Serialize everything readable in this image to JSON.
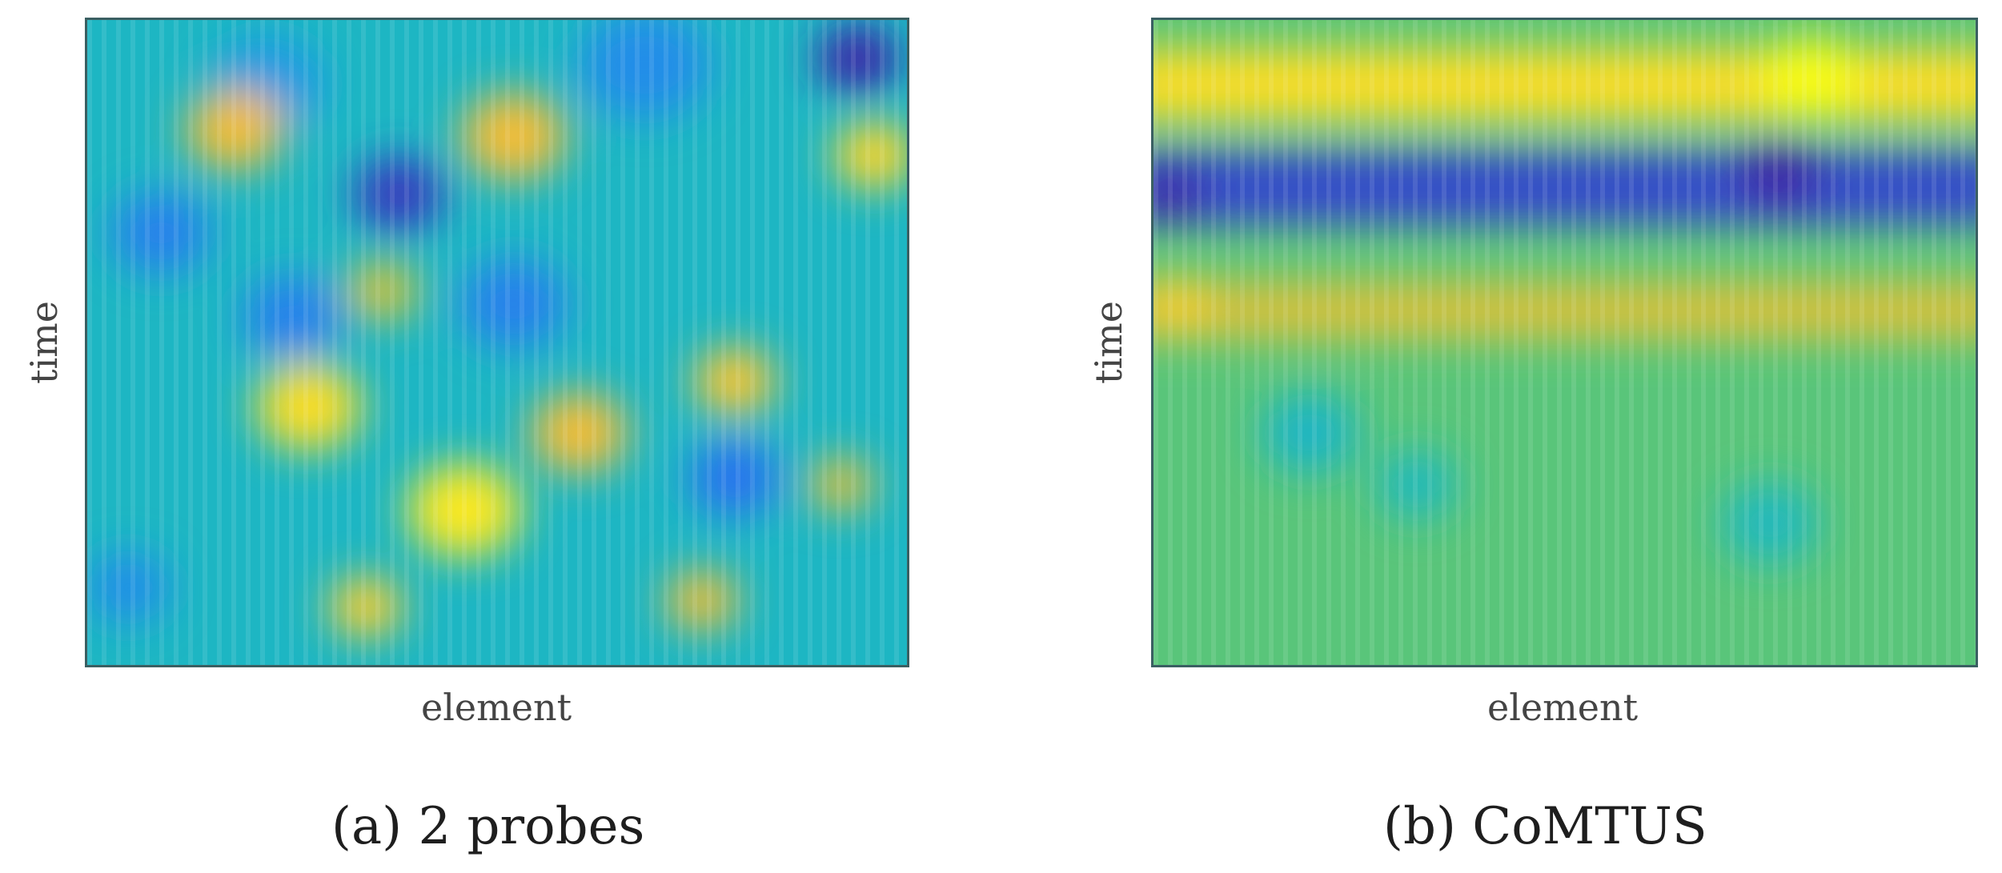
{
  "chart_data": [
    {
      "type": "heatmap",
      "caption": "(a) 2 probes",
      "xlabel": "element",
      "ylabel": "time",
      "colormap": [
        "#3e26a8",
        "#2e6ef0",
        "#12aedf",
        "#2ec39a",
        "#a5c840",
        "#f9bc38",
        "#f9fb15"
      ],
      "grid": false,
      "legend": "none",
      "blobs": [
        {
          "x": 0.94,
          "y": 0.06,
          "value": 0.0,
          "size": 0.05
        },
        {
          "x": 0.38,
          "y": 0.27,
          "value": 0.05,
          "size": 0.055
        },
        {
          "x": 0.79,
          "y": 0.71,
          "value": 0.18,
          "size": 0.055
        },
        {
          "x": 0.09,
          "y": 0.33,
          "value": 0.22,
          "size": 0.06
        },
        {
          "x": 0.25,
          "y": 0.46,
          "value": 0.22,
          "size": 0.06
        },
        {
          "x": 0.52,
          "y": 0.44,
          "value": 0.22,
          "size": 0.065
        },
        {
          "x": 0.68,
          "y": 0.07,
          "value": 0.25,
          "size": 0.08
        },
        {
          "x": 0.22,
          "y": 0.1,
          "value": 0.28,
          "size": 0.07
        },
        {
          "x": 0.05,
          "y": 0.88,
          "value": 0.25,
          "size": 0.05
        },
        {
          "x": 0.18,
          "y": 0.17,
          "value": 0.82,
          "size": 0.06
        },
        {
          "x": 0.52,
          "y": 0.18,
          "value": 0.82,
          "size": 0.065
        },
        {
          "x": 0.96,
          "y": 0.21,
          "value": 0.9,
          "size": 0.05
        },
        {
          "x": 0.27,
          "y": 0.6,
          "value": 0.92,
          "size": 0.065
        },
        {
          "x": 0.46,
          "y": 0.76,
          "value": 0.95,
          "size": 0.07
        },
        {
          "x": 0.6,
          "y": 0.64,
          "value": 0.82,
          "size": 0.06
        },
        {
          "x": 0.79,
          "y": 0.56,
          "value": 0.86,
          "size": 0.05
        },
        {
          "x": 0.36,
          "y": 0.42,
          "value": 0.75,
          "size": 0.045
        },
        {
          "x": 0.34,
          "y": 0.91,
          "value": 0.88,
          "size": 0.045
        },
        {
          "x": 0.75,
          "y": 0.9,
          "value": 0.8,
          "size": 0.045
        },
        {
          "x": 0.92,
          "y": 0.72,
          "value": 0.78,
          "size": 0.04
        }
      ]
    },
    {
      "type": "heatmap",
      "caption": "(b) CoMTUS",
      "xlabel": "element",
      "ylabel": "time",
      "colormap": [
        "#3e26a8",
        "#2e6ef0",
        "#12aedf",
        "#2ec39a",
        "#a5c840",
        "#f9bc38",
        "#f9fb15"
      ],
      "grid": false,
      "legend": "none",
      "bands": [
        {
          "y": 0.1,
          "value": 0.92,
          "width": 0.055
        },
        {
          "y": 0.26,
          "value": 0.08,
          "width": 0.055
        },
        {
          "y": 0.45,
          "value": 0.76,
          "width": 0.045
        }
      ],
      "blobs": [
        {
          "x": 0.8,
          "y": 0.09,
          "value": 1.0,
          "size": 0.06
        },
        {
          "x": 0.02,
          "y": 0.27,
          "value": 0.0,
          "size": 0.04
        },
        {
          "x": 0.76,
          "y": 0.24,
          "value": 0.0,
          "size": 0.05
        },
        {
          "x": 0.03,
          "y": 0.44,
          "value": 0.88,
          "size": 0.04
        },
        {
          "x": 0.19,
          "y": 0.64,
          "value": 0.4,
          "size": 0.06
        },
        {
          "x": 0.32,
          "y": 0.72,
          "value": 0.42,
          "size": 0.05
        },
        {
          "x": 0.75,
          "y": 0.78,
          "value": 0.42,
          "size": 0.06
        }
      ]
    }
  ]
}
